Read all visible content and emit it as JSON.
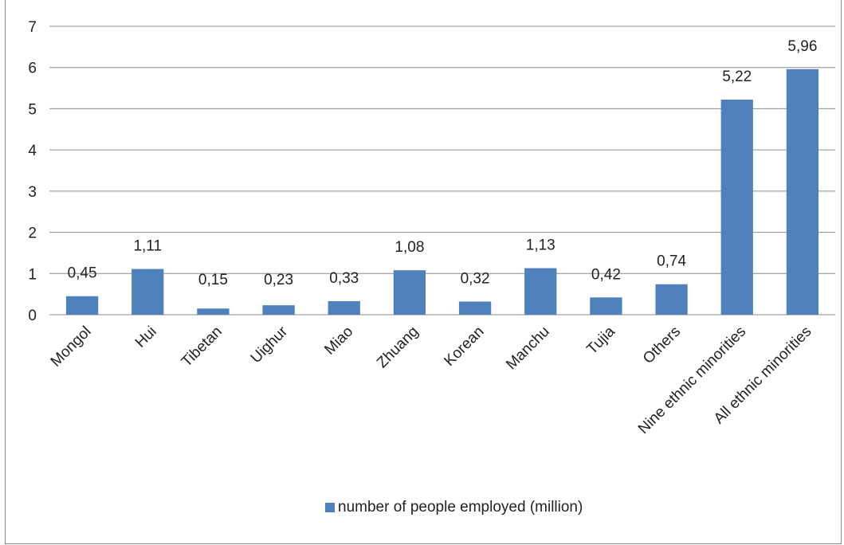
{
  "chart_data": {
    "type": "bar",
    "title": "",
    "xlabel": "",
    "ylabel": "",
    "categories": [
      "Mongol",
      "Hui",
      "Tibetan",
      "Uighur",
      "Miao",
      "Zhuang",
      "Korean",
      "Manchu",
      "Tujia",
      "Others",
      "Nine ethnic minorities",
      "All ethnic minorities"
    ],
    "series": [
      {
        "name": "number of people employed (million)",
        "values": [
          0.45,
          1.11,
          0.15,
          0.23,
          0.33,
          1.08,
          0.32,
          1.13,
          0.42,
          0.74,
          5.22,
          5.96
        ],
        "labels": [
          "0,45",
          "1,11",
          "0,15",
          "0,23",
          "0,33",
          "1,08",
          "0,32",
          "1,13",
          "0,42",
          "0,74",
          "5,22",
          "5,96"
        ],
        "color": "#4f81bd"
      }
    ],
    "ylim": [
      0,
      7
    ],
    "yticks": [
      "0",
      "1",
      "2",
      "3",
      "4",
      "5",
      "6",
      "7"
    ],
    "grid": true,
    "legend_position": "bottom"
  }
}
